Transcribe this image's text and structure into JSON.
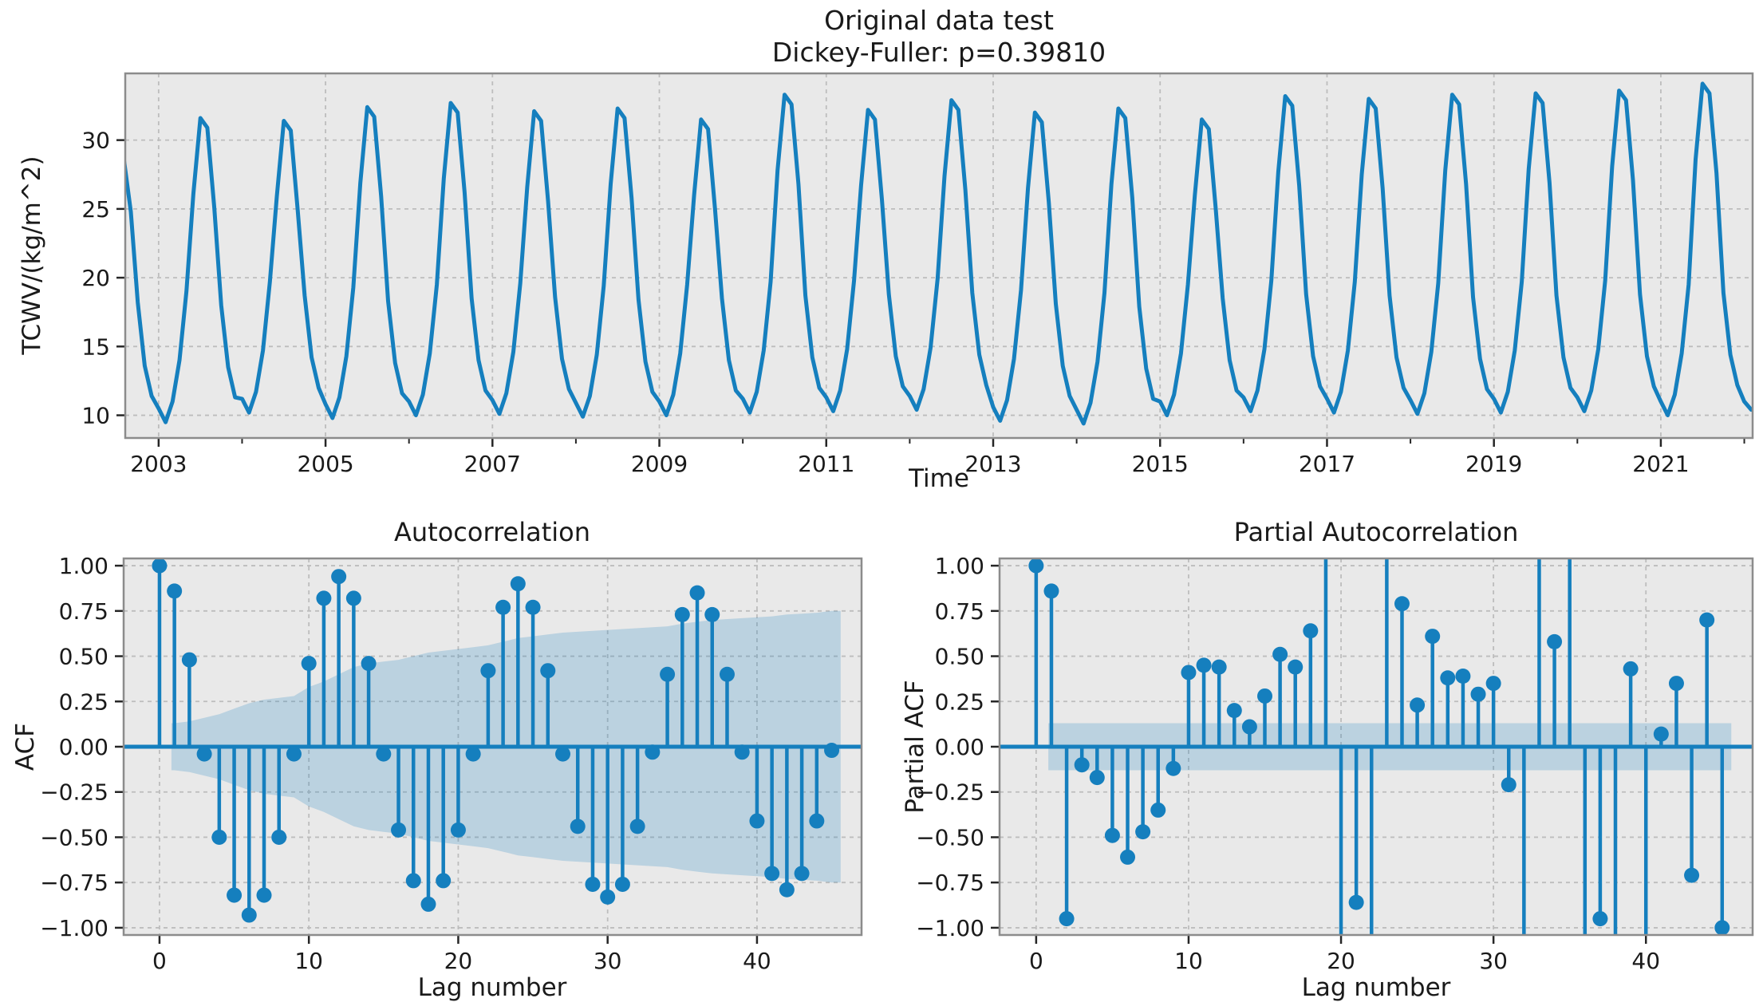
{
  "figure": {
    "colors": {
      "figure_bg": "#ffffff",
      "axes_bg": "#e9e9e9",
      "grid": "#bdbdbd",
      "frame": "#8c8c8c",
      "series": "#157fbe",
      "band_fill": "#157fbe",
      "band_opacity": 0.22,
      "text": "#1a1a1a",
      "tick": "#262626"
    }
  },
  "chart_data": [
    {
      "type": "line",
      "title": [
        "Original data test",
        "Dickey-Fuller: p=0.39810"
      ],
      "xlabel": "Time",
      "ylabel": "TCWV/(kg/m^2)",
      "xlim": [
        2002.6,
        2022.1
      ],
      "ylim": [
        8.35,
        34.85
      ],
      "xticks": [
        2003,
        2005,
        2007,
        2009,
        2011,
        2013,
        2015,
        2017,
        2019,
        2021
      ],
      "xticks_minor": [
        2004,
        2006,
        2008,
        2010,
        2012,
        2014,
        2016,
        2018,
        2020,
        2022
      ],
      "yticks": [
        10,
        15,
        20,
        25,
        30
      ],
      "grid": true,
      "x_start": 2002.5833,
      "x_step": 0.0833333,
      "values": [
        28.6,
        24.8,
        18.2,
        13.6,
        11.4,
        10.5,
        9.5,
        11.0,
        14.0,
        19.0,
        26.1,
        31.6,
        30.9,
        25.1,
        18.0,
        13.5,
        11.3,
        11.2,
        10.2,
        11.7,
        14.7,
        19.7,
        25.9,
        31.4,
        30.7,
        24.9,
        18.7,
        14.2,
        12.0,
        10.8,
        9.8,
        11.3,
        14.3,
        19.3,
        26.9,
        32.4,
        31.7,
        25.9,
        18.3,
        13.8,
        11.6,
        11.0,
        10.0,
        11.5,
        14.5,
        19.5,
        27.2,
        32.7,
        32.0,
        26.2,
        18.5,
        14.0,
        11.8,
        11.1,
        10.1,
        11.6,
        14.6,
        19.6,
        26.6,
        32.1,
        31.4,
        25.6,
        18.6,
        14.1,
        11.9,
        10.9,
        9.9,
        11.4,
        14.4,
        19.4,
        26.8,
        32.3,
        31.6,
        25.8,
        18.4,
        13.9,
        11.7,
        11.0,
        10.0,
        11.5,
        14.5,
        19.5,
        26.0,
        31.5,
        30.8,
        25.0,
        18.5,
        14.0,
        11.8,
        11.2,
        10.2,
        11.7,
        14.7,
        19.7,
        27.8,
        33.3,
        32.6,
        26.8,
        18.7,
        14.2,
        12.0,
        11.3,
        10.3,
        11.8,
        14.8,
        19.8,
        26.7,
        32.2,
        31.5,
        25.7,
        18.8,
        14.3,
        12.1,
        11.4,
        10.4,
        11.9,
        14.9,
        19.9,
        27.4,
        32.9,
        32.2,
        26.4,
        18.9,
        14.4,
        12.2,
        10.6,
        9.6,
        11.1,
        14.1,
        19.1,
        26.5,
        32.0,
        31.3,
        25.5,
        18.1,
        13.6,
        11.4,
        10.4,
        9.4,
        10.9,
        13.9,
        18.9,
        26.8,
        32.3,
        31.6,
        25.8,
        17.9,
        13.4,
        11.2,
        11.0,
        10.0,
        11.5,
        14.5,
        19.5,
        26.0,
        31.5,
        30.8,
        25.0,
        18.5,
        14.0,
        11.8,
        11.3,
        10.3,
        11.8,
        14.8,
        19.8,
        27.7,
        33.2,
        32.5,
        26.7,
        18.8,
        14.3,
        12.1,
        11.2,
        10.2,
        11.7,
        14.7,
        19.7,
        27.5,
        33.0,
        32.3,
        26.5,
        18.7,
        14.2,
        12.0,
        11.1,
        10.1,
        11.6,
        14.6,
        19.6,
        27.8,
        33.3,
        32.6,
        26.8,
        18.6,
        14.1,
        11.9,
        11.2,
        10.2,
        11.7,
        14.7,
        19.7,
        27.9,
        33.4,
        32.7,
        26.9,
        18.7,
        14.2,
        12.0,
        11.3,
        10.3,
        11.8,
        14.8,
        19.8,
        28.1,
        33.6,
        32.9,
        27.1,
        18.8,
        14.3,
        12.1,
        11.0,
        10.0,
        11.5,
        14.5,
        19.5,
        28.6,
        34.1,
        33.4,
        27.6,
        18.9,
        14.4,
        12.2,
        11.0,
        10.4
      ]
    },
    {
      "type": "stem",
      "title": "Autocorrelation",
      "xlabel": "Lag number",
      "ylabel": "ACF",
      "xlim": [
        -2.4,
        47.0
      ],
      "ylim": [
        -1.04,
        1.04
      ],
      "xticks": [
        0,
        10,
        20,
        30,
        40
      ],
      "yticks": [
        1.0,
        0.75,
        0.5,
        0.25,
        0.0,
        -0.25,
        -0.5,
        -0.75,
        -1.0
      ],
      "grid": true,
      "lag_start": 0,
      "values": [
        1.0,
        0.86,
        0.48,
        -0.04,
        -0.5,
        -0.82,
        -0.93,
        -0.82,
        -0.5,
        -0.04,
        0.46,
        0.82,
        0.94,
        0.82,
        0.46,
        -0.04,
        -0.46,
        -0.74,
        -0.87,
        -0.74,
        -0.46,
        -0.04,
        0.42,
        0.77,
        0.9,
        0.77,
        0.42,
        -0.04,
        -0.44,
        -0.76,
        -0.83,
        -0.76,
        -0.44,
        -0.03,
        0.4,
        0.73,
        0.85,
        0.73,
        0.4,
        -0.03,
        -0.41,
        -0.7,
        -0.79,
        -0.7,
        -0.41,
        -0.02
      ],
      "conf_band": {
        "shape": "bartlett",
        "lag_from": 0.8,
        "lag_to": 45.6,
        "upper": [
          0.13,
          0.14,
          0.16,
          0.18,
          0.21,
          0.24,
          0.26,
          0.27,
          0.28,
          0.33,
          0.36,
          0.4,
          0.44,
          0.46,
          0.47,
          0.48,
          0.5,
          0.52,
          0.53,
          0.54,
          0.55,
          0.56,
          0.58,
          0.6,
          0.61,
          0.62,
          0.63,
          0.635,
          0.64,
          0.645,
          0.65,
          0.655,
          0.66,
          0.665,
          0.68,
          0.69,
          0.7,
          0.705,
          0.71,
          0.715,
          0.72,
          0.73,
          0.735,
          0.74,
          0.75
        ]
      }
    },
    {
      "type": "stem",
      "title": "Partial Autocorrelation",
      "xlabel": "Lag number",
      "ylabel": "Partial ACF",
      "xlim": [
        -2.4,
        47.0
      ],
      "ylim": [
        -1.04,
        1.04
      ],
      "xticks": [
        0,
        10,
        20,
        30,
        40
      ],
      "yticks": [
        1.0,
        0.75,
        0.5,
        0.25,
        0.0,
        -0.25,
        -0.5,
        -0.75,
        -1.0
      ],
      "grid": true,
      "lag_start": 0,
      "values": [
        1.0,
        0.86,
        -0.95,
        -0.1,
        -0.17,
        -0.49,
        -0.61,
        -0.47,
        -0.35,
        -0.12,
        0.41,
        0.45,
        0.44,
        0.2,
        0.11,
        0.28,
        0.51,
        0.44,
        0.64,
        1.1,
        -1.1,
        -0.86,
        -1.1,
        1.1,
        0.79,
        0.23,
        0.61,
        0.38,
        0.39,
        0.29,
        0.35,
        -0.21,
        -1.1,
        1.1,
        0.58,
        1.1,
        -1.1,
        -0.95,
        -1.1,
        0.43,
        -1.1,
        0.07,
        0.35,
        -0.71,
        0.7,
        -1.0
      ],
      "conf_band": {
        "shape": "rect",
        "halfwidth": 0.13,
        "lag_from": 0.8,
        "lag_to": 45.6
      }
    }
  ]
}
